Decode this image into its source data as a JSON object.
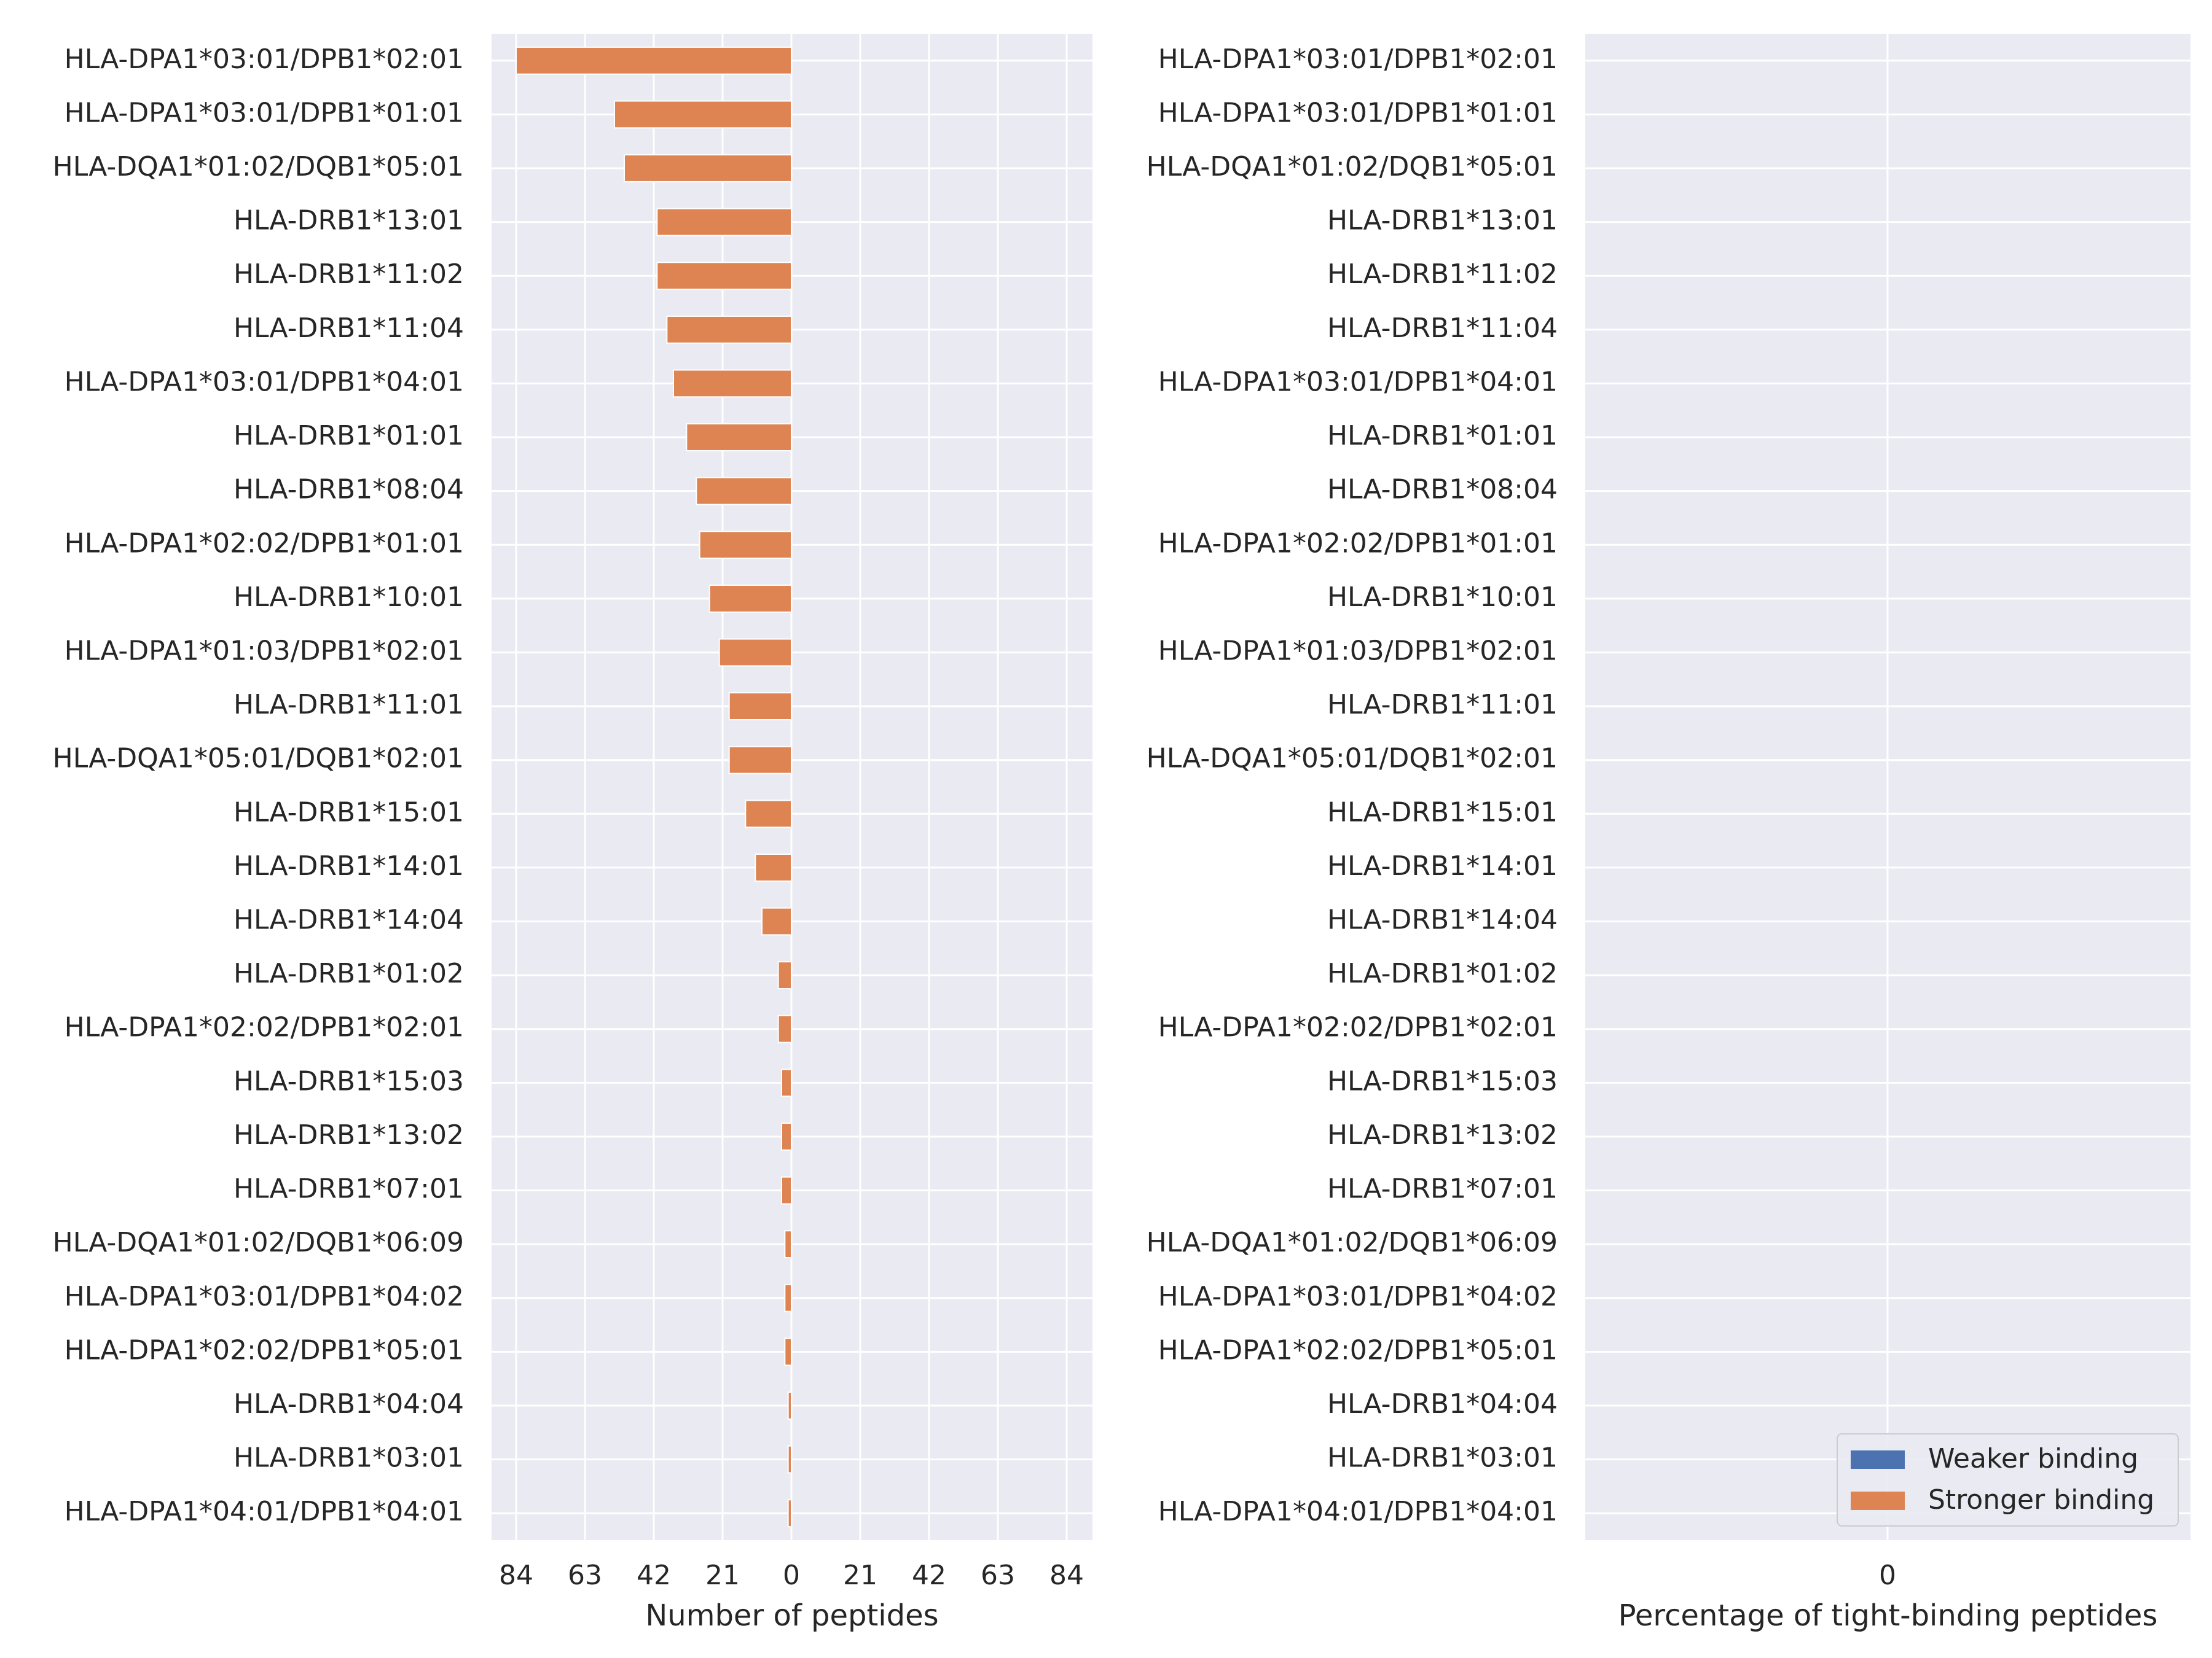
{
  "chart_data": [
    {
      "type": "bar",
      "orientation": "horizontal",
      "xlabel": "Number of peptides",
      "xticks": [
        "84",
        "63",
        "42",
        "21",
        "0",
        "21",
        "42",
        "63",
        "84"
      ],
      "xlim": [
        -92,
        92
      ],
      "grid": true,
      "categories": [
        "HLA-DPA1*03:01/DPB1*02:01",
        "HLA-DPA1*03:01/DPB1*01:01",
        "HLA-DQA1*01:02/DQB1*05:01",
        "HLA-DRB1*13:01",
        "HLA-DRB1*11:02",
        "HLA-DRB1*11:04",
        "HLA-DPA1*03:01/DPB1*04:01",
        "HLA-DRB1*01:01",
        "HLA-DRB1*08:04",
        "HLA-DPA1*02:02/DPB1*01:01",
        "HLA-DRB1*10:01",
        "HLA-DPA1*01:03/DPB1*02:01",
        "HLA-DRB1*11:01",
        "HLA-DQA1*05:01/DQB1*02:01",
        "HLA-DRB1*15:01",
        "HLA-DRB1*14:01",
        "HLA-DRB1*14:04",
        "HLA-DRB1*01:02",
        "HLA-DPA1*02:02/DPB1*02:01",
        "HLA-DRB1*15:03",
        "HLA-DRB1*13:02",
        "HLA-DRB1*07:01",
        "HLA-DQA1*01:02/DQB1*06:09",
        "HLA-DPA1*03:01/DPB1*04:02",
        "HLA-DPA1*02:02/DPB1*05:01",
        "HLA-DRB1*04:04",
        "HLA-DRB1*03:01",
        "HLA-DPA1*04:01/DPB1*04:01"
      ],
      "series": [
        {
          "name": "Stronger binding",
          "color": "#dd8452",
          "values": [
            84,
            54,
            51,
            41,
            41,
            38,
            36,
            32,
            29,
            28,
            25,
            22,
            19,
            19,
            14,
            11,
            9,
            4,
            4,
            3,
            3,
            3,
            2,
            2,
            2,
            1,
            1,
            1
          ]
        }
      ]
    },
    {
      "type": "bar",
      "orientation": "horizontal",
      "xlabel": "Percentage of tight-binding peptides",
      "xticks": [
        "0"
      ],
      "grid": true,
      "categories": [
        "HLA-DPA1*03:01/DPB1*02:01",
        "HLA-DPA1*03:01/DPB1*01:01",
        "HLA-DQA1*01:02/DQB1*05:01",
        "HLA-DRB1*13:01",
        "HLA-DRB1*11:02",
        "HLA-DRB1*11:04",
        "HLA-DPA1*03:01/DPB1*04:01",
        "HLA-DRB1*01:01",
        "HLA-DRB1*08:04",
        "HLA-DPA1*02:02/DPB1*01:01",
        "HLA-DRB1*10:01",
        "HLA-DPA1*01:03/DPB1*02:01",
        "HLA-DRB1*11:01",
        "HLA-DQA1*05:01/DQB1*02:01",
        "HLA-DRB1*15:01",
        "HLA-DRB1*14:01",
        "HLA-DRB1*14:04",
        "HLA-DRB1*01:02",
        "HLA-DPA1*02:02/DPB1*02:01",
        "HLA-DRB1*15:03",
        "HLA-DRB1*13:02",
        "HLA-DRB1*07:01",
        "HLA-DQA1*01:02/DQB1*06:09",
        "HLA-DPA1*03:01/DPB1*04:02",
        "HLA-DPA1*02:02/DPB1*05:01",
        "HLA-DRB1*04:04",
        "HLA-DRB1*03:01",
        "HLA-DPA1*04:01/DPB1*04:01"
      ],
      "series": [],
      "legend": {
        "position": "lower-right",
        "entries": [
          {
            "label": "Weaker binding",
            "color": "#4c72b0"
          },
          {
            "label": "Stronger binding",
            "color": "#dd8452"
          }
        ]
      }
    }
  ]
}
